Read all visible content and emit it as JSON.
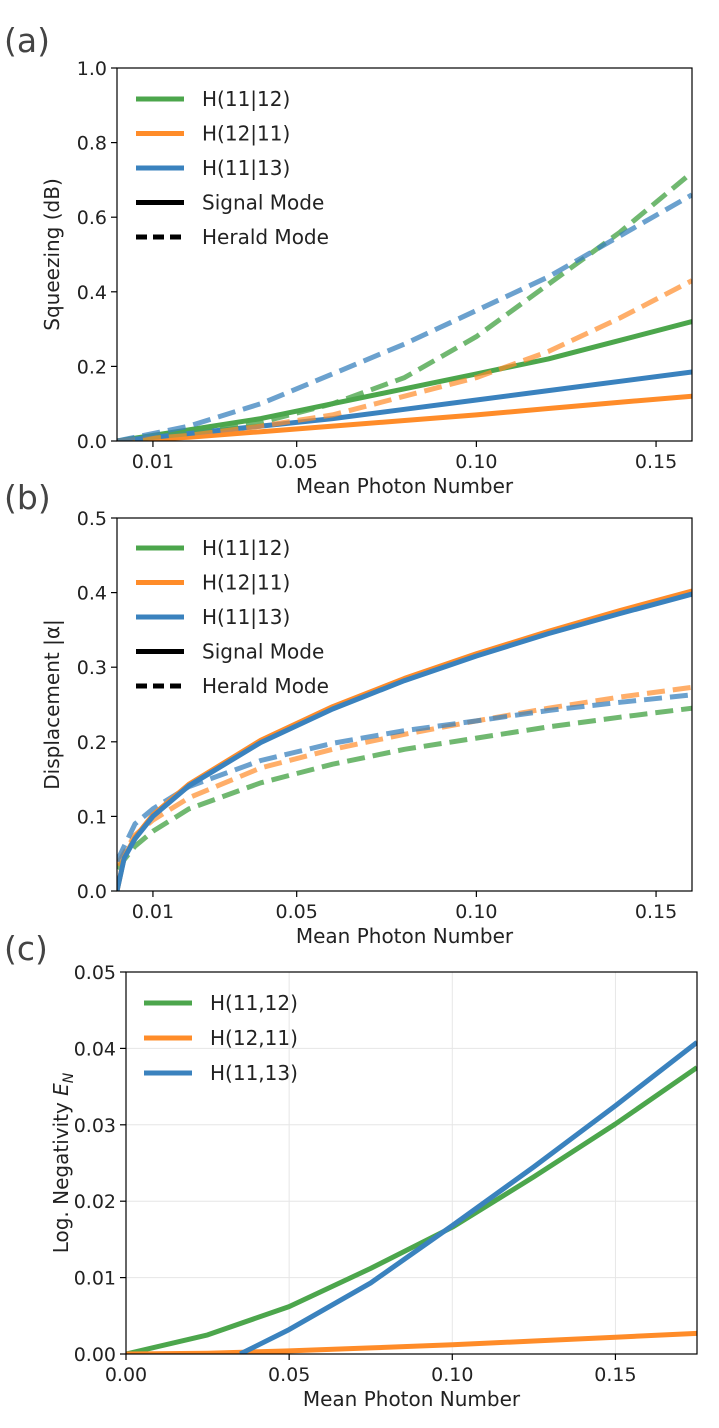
{
  "colors": {
    "green": "#4CA64C",
    "orange": "#FF8C29",
    "blue": "#3A82BE",
    "black": "#000000",
    "grid": "#E6E6E6"
  },
  "chart_data": [
    {
      "panel": "(a)",
      "type": "line",
      "xlabel": "Mean Photon Number",
      "ylabel": "Squeezing (dB)",
      "xlim": [
        0.0,
        0.16
      ],
      "ylim": [
        0.0,
        1.0
      ],
      "xticks": [
        0.01,
        0.05,
        0.1,
        0.15
      ],
      "xtick_labels": [
        "0.01",
        "0.05",
        "0.10",
        "0.15"
      ],
      "yticks": [
        0.0,
        0.2,
        0.4,
        0.6,
        0.8,
        1.0
      ],
      "ytick_labels": [
        "0.0",
        "0.2",
        "0.4",
        "0.6",
        "0.8",
        "1.0"
      ],
      "grid": false,
      "legend_position": "top-left",
      "legend": [
        {
          "label": "H(11|12)",
          "color": "green",
          "style": "solid"
        },
        {
          "label": "H(12|11)",
          "color": "orange",
          "style": "solid"
        },
        {
          "label": "H(11|13)",
          "color": "blue",
          "style": "solid"
        },
        {
          "label": "Signal Mode",
          "color": "black",
          "style": "solid"
        },
        {
          "label": "Herald Mode",
          "color": "black",
          "style": "dashed"
        }
      ],
      "series": [
        {
          "name": "H(11|12) Signal Mode",
          "color": "green",
          "style": "solid",
          "alpha": 1,
          "x": [
            0,
            0.02,
            0.04,
            0.06,
            0.08,
            0.1,
            0.12,
            0.14,
            0.16
          ],
          "y": [
            0,
            0.03,
            0.06,
            0.1,
            0.14,
            0.18,
            0.22,
            0.27,
            0.32
          ]
        },
        {
          "name": "H(12|11) Signal Mode",
          "color": "orange",
          "style": "solid",
          "alpha": 1,
          "x": [
            0,
            0.02,
            0.04,
            0.06,
            0.08,
            0.1,
            0.12,
            0.14,
            0.16
          ],
          "y": [
            0,
            0.01,
            0.025,
            0.04,
            0.055,
            0.07,
            0.087,
            0.104,
            0.12
          ]
        },
        {
          "name": "H(11|13) Signal Mode",
          "color": "blue",
          "style": "solid",
          "alpha": 1,
          "x": [
            0,
            0.02,
            0.04,
            0.06,
            0.08,
            0.1,
            0.12,
            0.14,
            0.16
          ],
          "y": [
            0,
            0.02,
            0.04,
            0.06,
            0.085,
            0.11,
            0.135,
            0.16,
            0.185
          ]
        },
        {
          "name": "H(11|12) Herald Mode",
          "color": "green",
          "style": "dashed",
          "alpha": 0.8,
          "x": [
            0,
            0.02,
            0.04,
            0.06,
            0.08,
            0.1,
            0.12,
            0.14,
            0.16
          ],
          "y": [
            0,
            0.02,
            0.05,
            0.1,
            0.17,
            0.28,
            0.42,
            0.56,
            0.72
          ]
        },
        {
          "name": "H(12|11) Herald Mode",
          "color": "orange",
          "style": "dashed",
          "alpha": 0.7,
          "x": [
            0,
            0.02,
            0.04,
            0.06,
            0.08,
            0.1,
            0.12,
            0.14,
            0.16
          ],
          "y": [
            0,
            0.015,
            0.04,
            0.07,
            0.12,
            0.17,
            0.24,
            0.33,
            0.43
          ]
        },
        {
          "name": "H(11|13) Herald Mode",
          "color": "blue",
          "style": "dashed",
          "alpha": 0.75,
          "x": [
            0,
            0.02,
            0.04,
            0.06,
            0.08,
            0.1,
            0.12,
            0.14,
            0.16
          ],
          "y": [
            0,
            0.04,
            0.1,
            0.18,
            0.26,
            0.35,
            0.44,
            0.55,
            0.66
          ]
        }
      ]
    },
    {
      "panel": "(b)",
      "type": "line",
      "xlabel": "Mean Photon Number",
      "ylabel": "Displacement |α|",
      "xlim": [
        0.0,
        0.16
      ],
      "ylim": [
        0.0,
        0.5
      ],
      "xticks": [
        0.01,
        0.05,
        0.1,
        0.15
      ],
      "xtick_labels": [
        "0.01",
        "0.05",
        "0.10",
        "0.15"
      ],
      "yticks": [
        0.0,
        0.1,
        0.2,
        0.3,
        0.4,
        0.5
      ],
      "ytick_labels": [
        "0.0",
        "0.1",
        "0.2",
        "0.3",
        "0.4",
        "0.5"
      ],
      "grid": false,
      "legend_position": "top-left",
      "legend": [
        {
          "label": "H(11|12)",
          "color": "green",
          "style": "solid"
        },
        {
          "label": "H(12|11)",
          "color": "orange",
          "style": "solid"
        },
        {
          "label": "H(11|13)",
          "color": "blue",
          "style": "solid"
        },
        {
          "label": "Signal Mode",
          "color": "black",
          "style": "solid"
        },
        {
          "label": "Herald Mode",
          "color": "black",
          "style": "dashed"
        }
      ],
      "series": [
        {
          "name": "H(11|12) Herald Mode",
          "color": "green",
          "style": "dashed",
          "alpha": 0.8,
          "x": [
            0,
            0.005,
            0.01,
            0.02,
            0.04,
            0.06,
            0.08,
            0.1,
            0.12,
            0.14,
            0.16
          ],
          "y": [
            0.03,
            0.06,
            0.08,
            0.11,
            0.145,
            0.17,
            0.19,
            0.205,
            0.22,
            0.233,
            0.245
          ]
        },
        {
          "name": "H(12|11) Herald Mode",
          "color": "orange",
          "style": "dashed",
          "alpha": 0.7,
          "x": [
            0,
            0.005,
            0.01,
            0.02,
            0.04,
            0.06,
            0.08,
            0.1,
            0.12,
            0.14,
            0.16
          ],
          "y": [
            0.035,
            0.075,
            0.095,
            0.125,
            0.165,
            0.19,
            0.21,
            0.228,
            0.245,
            0.26,
            0.273
          ]
        },
        {
          "name": "H(11|13) Herald Mode",
          "color": "blue",
          "style": "dashed",
          "alpha": 0.75,
          "x": [
            0,
            0.005,
            0.01,
            0.02,
            0.04,
            0.06,
            0.08,
            0.1,
            0.12,
            0.14,
            0.16
          ],
          "y": [
            0.04,
            0.09,
            0.11,
            0.14,
            0.175,
            0.198,
            0.215,
            0.228,
            0.242,
            0.253,
            0.263
          ]
        },
        {
          "name": "H(12|11) Signal Mode",
          "color": "orange",
          "style": "solid",
          "alpha": 1,
          "x": [
            0,
            0.002,
            0.005,
            0.01,
            0.02,
            0.04,
            0.06,
            0.08,
            0.1,
            0.12,
            0.14,
            0.16
          ],
          "y": [
            0,
            0.045,
            0.072,
            0.102,
            0.143,
            0.202,
            0.247,
            0.285,
            0.318,
            0.348,
            0.376,
            0.402
          ]
        },
        {
          "name": "H(11|13) Signal Mode",
          "color": "blue",
          "style": "solid",
          "alpha": 1,
          "x": [
            0,
            0.002,
            0.005,
            0.01,
            0.02,
            0.04,
            0.06,
            0.08,
            0.1,
            0.12,
            0.14,
            0.16
          ],
          "y": [
            0,
            0.044,
            0.07,
            0.1,
            0.141,
            0.199,
            0.244,
            0.282,
            0.315,
            0.345,
            0.372,
            0.398
          ]
        }
      ]
    },
    {
      "panel": "(c)",
      "type": "line",
      "xlabel": "Mean Photon Number",
      "ylabel": "Log. Negativity E_N",
      "ylabel_main": "Log. Negativity ",
      "ylabel_symbol": "E",
      "ylabel_subscript": "N",
      "xlim": [
        0.0,
        0.175
      ],
      "ylim": [
        0.0,
        0.05
      ],
      "xticks": [
        0.0,
        0.05,
        0.1,
        0.15
      ],
      "xtick_labels": [
        "0.00",
        "0.05",
        "0.10",
        "0.15"
      ],
      "yticks": [
        0.0,
        0.01,
        0.02,
        0.03,
        0.04,
        0.05
      ],
      "ytick_labels": [
        "0.00",
        "0.01",
        "0.02",
        "0.03",
        "0.04",
        "0.05"
      ],
      "grid": true,
      "legend_position": "top-left",
      "legend": [
        {
          "label": "H(11,12)",
          "color": "green",
          "style": "solid"
        },
        {
          "label": "H(12,11)",
          "color": "orange",
          "style": "solid"
        },
        {
          "label": "H(11,13)",
          "color": "blue",
          "style": "solid"
        }
      ],
      "series": [
        {
          "name": "H(11,12)",
          "color": "green",
          "style": "solid",
          "alpha": 1,
          "x": [
            0,
            0.025,
            0.05,
            0.075,
            0.1,
            0.125,
            0.15,
            0.175
          ],
          "y": [
            0,
            0.0025,
            0.0062,
            0.0112,
            0.0166,
            0.0232,
            0.0301,
            0.0375
          ]
        },
        {
          "name": "H(12,11)",
          "color": "orange",
          "style": "solid",
          "alpha": 1,
          "x": [
            0,
            0.025,
            0.05,
            0.075,
            0.1,
            0.125,
            0.15,
            0.175
          ],
          "y": [
            0,
            0.0001,
            0.0004,
            0.0008,
            0.0012,
            0.0017,
            0.0022,
            0.0027
          ]
        },
        {
          "name": "H(11,13)",
          "color": "blue",
          "style": "solid",
          "alpha": 1,
          "x": [
            0.035,
            0.05,
            0.075,
            0.1,
            0.125,
            0.15,
            0.175
          ],
          "y": [
            0,
            0.0032,
            0.0093,
            0.0168,
            0.0245,
            0.0325,
            0.0408
          ]
        }
      ]
    }
  ]
}
